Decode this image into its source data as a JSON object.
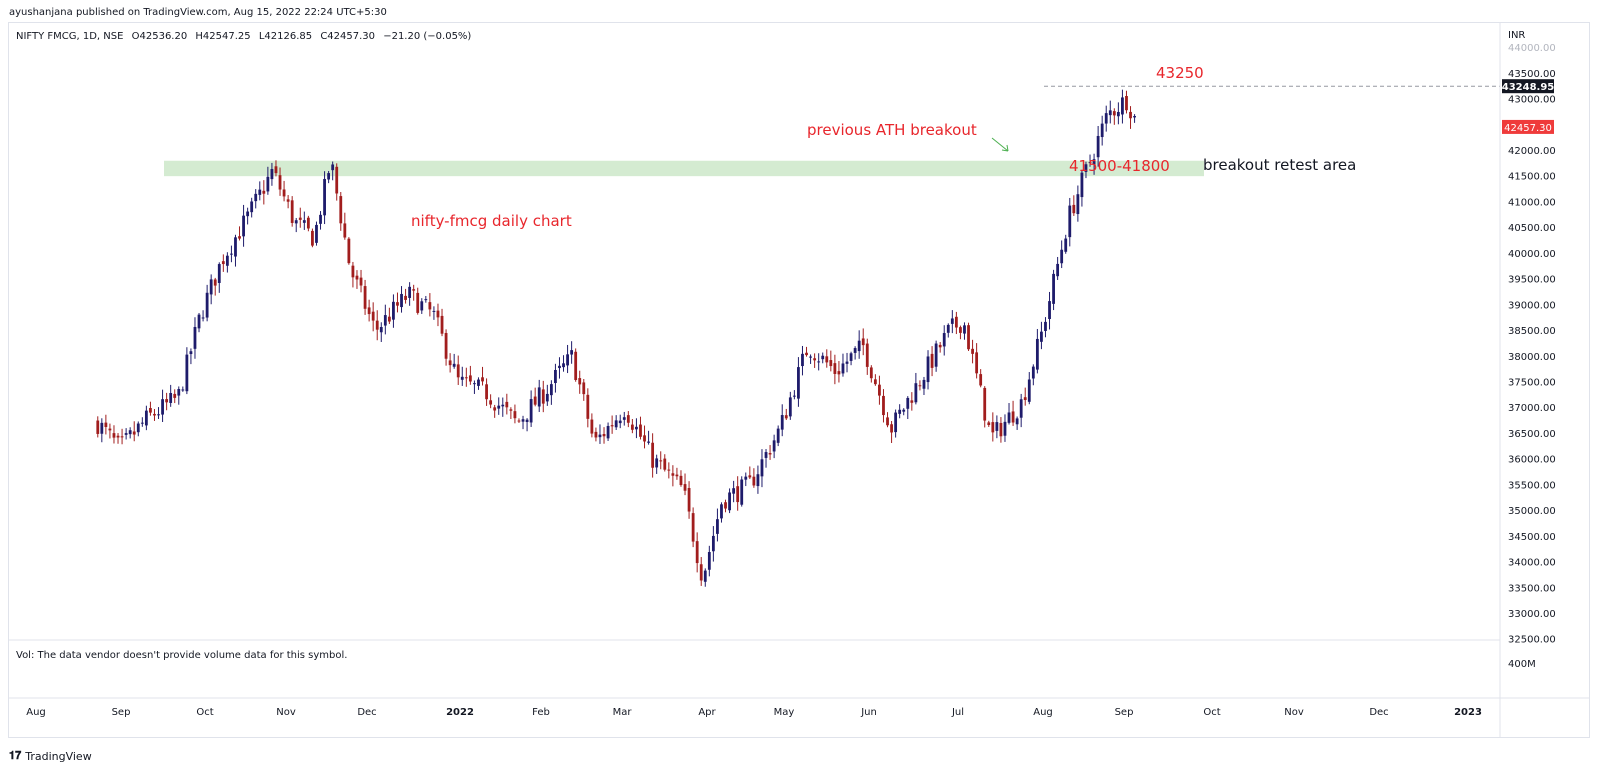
{
  "publisher": "ayushanjana published on TradingView.com, Aug 15, 2022 22:24 UTC+5:30",
  "legend": {
    "symbol": "NIFTY FMCG, 1D, NSE",
    "open": "O42536.20",
    "high": "H42547.25",
    "low": "L42126.85",
    "close": "C42457.30",
    "change": "−21.20 (−0.05%)"
  },
  "volume_note": "Vol: The data vendor doesn't provide volume data for this symbol.",
  "brand": "TradingView",
  "colors": {
    "up": "#1e1b6b",
    "down": "#a11d1d",
    "annotation": "#e8262c",
    "zone": "#cfe9cc",
    "price_label_bg": "#ef3b3b"
  },
  "chart_data": {
    "type": "candlestick",
    "currency": "INR",
    "ylim": [
      32500,
      44000
    ],
    "y_ticks": [
      "44000.00",
      "43500.00",
      "43000.00",
      "42000.00",
      "41500.00",
      "41000.00",
      "40500.00",
      "40000.00",
      "39500.00",
      "39000.00",
      "38500.00",
      "38000.00",
      "37500.00",
      "37000.00",
      "36500.00",
      "36000.00",
      "35500.00",
      "35000.00",
      "34500.00",
      "34000.00",
      "33500.00",
      "33000.00",
      "32500.00"
    ],
    "volume_tick": "400M",
    "x_labels": [
      "Aug",
      "Sep",
      "Oct",
      "Nov",
      "Dec",
      "2022",
      "Feb",
      "Mar",
      "Apr",
      "May",
      "Jun",
      "Jul",
      "Aug",
      "Sep",
      "Oct",
      "Nov",
      "Dec",
      "2023"
    ],
    "price_labels": {
      "high_marker": "43248.95",
      "last": "42457.30"
    },
    "path": [
      [
        "2021-08-02",
        36700
      ],
      [
        "2021-08-10",
        36200
      ],
      [
        "2021-08-20",
        36800
      ],
      [
        "2021-08-31",
        37200
      ],
      [
        "2021-09-08",
        38800
      ],
      [
        "2021-09-16",
        39900
      ],
      [
        "2021-09-25",
        40700
      ],
      [
        "2021-10-04",
        41600
      ],
      [
        "2021-10-12",
        40600
      ],
      [
        "2021-10-19",
        40300
      ],
      [
        "2021-10-25",
        41800
      ],
      [
        "2021-11-01",
        39700
      ],
      [
        "2021-11-10",
        38500
      ],
      [
        "2021-11-22",
        39200
      ],
      [
        "2021-12-01",
        38800
      ],
      [
        "2021-12-10",
        37500
      ],
      [
        "2021-12-20",
        37300
      ],
      [
        "2021-12-31",
        36700
      ],
      [
        "2022-01-10",
        37300
      ],
      [
        "2022-01-20",
        38000
      ],
      [
        "2022-01-28",
        36300
      ],
      [
        "2022-02-08",
        37000
      ],
      [
        "2022-02-18",
        36000
      ],
      [
        "2022-03-01",
        35400
      ],
      [
        "2022-03-08",
        33700
      ],
      [
        "2022-03-15",
        35200
      ],
      [
        "2022-03-25",
        35500
      ],
      [
        "2022-04-05",
        36600
      ],
      [
        "2022-04-15",
        38200
      ],
      [
        "2022-04-25",
        37700
      ],
      [
        "2022-05-05",
        38200
      ],
      [
        "2022-05-15",
        36600
      ],
      [
        "2022-05-25",
        37500
      ],
      [
        "2022-06-05",
        38500
      ],
      [
        "2022-06-10",
        38700
      ],
      [
        "2022-06-20",
        36400
      ],
      [
        "2022-07-01",
        37100
      ],
      [
        "2022-07-08",
        38400
      ],
      [
        "2022-07-18",
        40700
      ],
      [
        "2022-07-25",
        41700
      ],
      [
        "2022-08-01",
        42700
      ],
      [
        "2022-08-08",
        43000
      ],
      [
        "2022-08-12",
        42457
      ]
    ],
    "annotations": {
      "level_43250": "43250",
      "ath_breakout": "previous ATH breakout",
      "zone_range": "41500-41800",
      "retest": "breakout retest area",
      "chart_label": "nifty-fmcg daily chart"
    },
    "zone": [
      41500,
      41800
    ]
  }
}
